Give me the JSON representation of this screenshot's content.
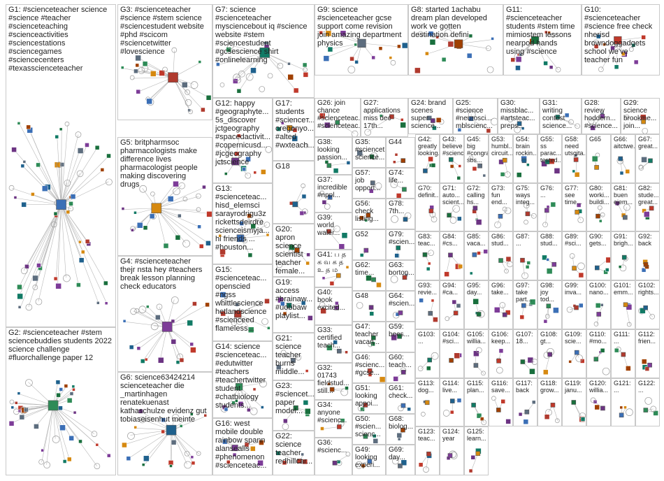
{
  "graph": {
    "colors": {
      "border": "#c9c9c9",
      "edge": "#b8b8b8",
      "label": "#222222",
      "background": "#ffffff"
    },
    "groups": [
      {
        "id": "G1",
        "label": "G1: #scienceteacher science\n#science #teacher\n#scienceteaching\n#scienceactivities\n#sciencestations\n#sciencegames\n#sciencecenters\n#texasscienceteacher"
      },
      {
        "id": "G2",
        "label": "G2: #scienceteacher #stem\nsciencebuddies students 2022\nscience challenge\n#fluorchallenge paper 12"
      },
      {
        "id": "G3",
        "label": "G3: #scienceteacher\n#science #stem science\n#sciencestudent website\n#phd #scicom\n#sciencetwitter\n#lovescience"
      },
      {
        "id": "G4",
        "label": "G4: #scienceteacher\nthejr nsta hey #teachers\nbreak lesson planning\ncheck educators"
      },
      {
        "id": "G5",
        "label": "G5: britpharmsoc\npharmacologists make\ndifference lives\npharmacologist people\nmaking discovering\ndrugs"
      },
      {
        "id": "G6",
        "label": "G6: science63424214\nscienceteacher die\n_martinhagen\nrenatekuenast\nkathaschulze evidenz gut\ntobiaseisenhut meinte"
      },
      {
        "id": "G7",
        "label": "G7: science\n#scienceteacher\nmysciencebout iq #science\nwebsite #stem\n#sciencestudent\n#gcsescience shirt\n#onlinelearning"
      },
      {
        "id": "G8",
        "label": "G8: started 1achabu\ndream plan developed\nwork ve gotten\ndestination defini"
      },
      {
        "id": "G9",
        "label": "G9: science\n#scienceteacher gcse\nsupport come revision\njoin amazing department\nphysics"
      },
      {
        "id": "G10",
        "label": "G10:\n#scienceteacher\n#science free check\nnherisd\nbrowndoggadgets\nschool we've\nteacher fun"
      },
      {
        "id": "G11",
        "label": "G11:\n#scienceteacher\nstudents #stem time\nmimiostem lessons\nnearpod hands\nusing #science"
      },
      {
        "id": "G12",
        "label": "G12: happy\n#geographyte...\n5s_discover\njctgeography\n#spacedactivit...\n#copernicusd...\n#jcgeography\njctscience"
      },
      {
        "id": "G13",
        "label": "G13:\n#scienceteac...\nhisd_elemsci\nsarayrodrigu3z\nrickettsdeirdre\nscienceismyja...\nhi friends ...\n#houston..."
      },
      {
        "id": "G14",
        "label": "G14: science\n#scienceteac...\n#edutwitter\n#teachers\n#teachertwitter\nstudent\n#chatbiology\nstudents..."
      },
      {
        "id": "G15",
        "label": "G15:\n#scienceteac...\nopenscied\n#ngss\nwhittlescience\nhetlandscience\n#scienceed\nflameless..."
      },
      {
        "id": "G16",
        "label": "G16: west\nmobile double\nrainbow spann\nalansealls\n#phenomenon\n#scienceteac..."
      },
      {
        "id": "G17",
        "label": "G17:\nstudents\n#scienceт...\noregonyo...\n#alted\n#wxteach..."
      },
      {
        "id": "G18",
        "label": "G18"
      },
      {
        "id": "G19",
        "label": "G19:\naccess\n#brainaw...\n#uobbaw\nplaylist..."
      },
      {
        "id": "G20",
        "label": "G20: apron\nscience\nscientist\nteacher\nfemale..."
      },
      {
        "id": "G21",
        "label": "G21:\nscience\nteacher\nburns\nmiddle..."
      },
      {
        "id": "G22",
        "label": "G22:\nscience\nteacher\nredhillcar..."
      },
      {
        "id": "G23",
        "label": "G23:\n#sciencet...\npaper\nmodel..."
      },
      {
        "id": "G24",
        "label": "G24: brand\nscenes\nsuper\nscience..."
      },
      {
        "id": "G25",
        "label": "G25:\n#science\n#neurosci...\nmblscienc..."
      },
      {
        "id": "G26",
        "label": "G26: join\nchance\n#scienceteac...\n#scienceteac..."
      },
      {
        "id": "G27",
        "label": "G27:\napplications\nmiss dec\n17th..."
      },
      {
        "id": "G28",
        "label": "G28:\nreview\nhoddern...\n#science..."
      },
      {
        "id": "G29",
        "label": "G29:\nscience\nbrookme...\njoin..."
      },
      {
        "id": "G30",
        "label": "G30:\nmissblac...\n#artsteac...\npreps..."
      },
      {
        "id": "G31",
        "label": "G31:\nwriting\ncontest\nscience..."
      },
      {
        "id": "G32",
        "label": "G32:\n01743\nfieldstud...\nstill..."
      },
      {
        "id": "G33",
        "label": "G33:\ncertified\nteach..."
      },
      {
        "id": "G34",
        "label": "G34:\nanyone\n#scienc..."
      },
      {
        "id": "G35",
        "label": "G35:\n#sciencet...\nscience..."
      },
      {
        "id": "G36",
        "label": "G36:\n#scienc..."
      },
      {
        "id": "G37",
        "label": "G37:\nincredible\n#nppl..."
      },
      {
        "id": "G38",
        "label": "G38:\nlooking\npassion..."
      },
      {
        "id": "G39",
        "label": "G39:\nworld\nwater..."
      },
      {
        "id": "G40",
        "label": "G40:\nbook\nexcited..."
      },
      {
        "id": "G41",
        "label": "G41: ப த\nக வ க த\nஉ த ம"
      },
      {
        "id": "G42",
        "label": "G42:\ngreatly\nlooking..."
      },
      {
        "id": "G43",
        "label": "G43:\nbelieve\n#scienc..."
      },
      {
        "id": "G44",
        "label": "G44"
      },
      {
        "id": "G45",
        "label": "G45: big\n#congra...\nsbs..."
      },
      {
        "id": "G46",
        "label": "G46:\n#scienc...\n#gcse..."
      },
      {
        "id": "G47",
        "label": "G47:\nteacher\nvacan..."
      },
      {
        "id": "G48",
        "label": "G48"
      },
      {
        "id": "G49",
        "label": "G49:\nlooking\nexperi..."
      },
      {
        "id": "G50",
        "label": "G50:\n#scien...\nscienc..."
      },
      {
        "id": "G51",
        "label": "G51:\nlooking\nappoi..."
      },
      {
        "id": "G52",
        "label": "G52"
      },
      {
        "id": "G53",
        "label": "G53:\nhumbl...\ncircuit..."
      },
      {
        "id": "G54",
        "label": "G54:\nbrain\nrockin..."
      },
      {
        "id": "G55",
        "label": "G55: ss\nparac...\ntested..."
      },
      {
        "id": "G56",
        "label": "G56:\ncheck\nlisting..."
      },
      {
        "id": "G57",
        "label": "G57:\njob\nopport..."
      },
      {
        "id": "G58",
        "label": "G58:\nneed\nutsgita..."
      },
      {
        "id": "G59",
        "label": "G59:\nbees..."
      },
      {
        "id": "G60",
        "label": "G60:\nteach..."
      },
      {
        "id": "G61",
        "label": "G61:\ncheck..."
      },
      {
        "id": "G62",
        "label": "G62:\ntime..."
      },
      {
        "id": "G63",
        "label": "G63:\nborton..."
      },
      {
        "id": "G64",
        "label": "G64:\n#scien..."
      },
      {
        "id": "G65",
        "label": "G65"
      },
      {
        "id": "G66",
        "label": "G66:\naitctwe..."
      },
      {
        "id": "G67",
        "label": "G67:\ngreat..."
      },
      {
        "id": "G68",
        "label": "G68:\nbiolog..."
      },
      {
        "id": "G69",
        "label": "G69:\nday..."
      },
      {
        "id": "G70",
        "label": "G70:\ndefinit..."
      },
      {
        "id": "G71",
        "label": "G71:\nauto...\nscient..."
      },
      {
        "id": "G72",
        "label": "G72:\ncalling\nhs..."
      },
      {
        "id": "G73",
        "label": "G73:\nfun\nend..."
      },
      {
        "id": "G74",
        "label": "G74:\nlife..."
      },
      {
        "id": "G75",
        "label": "G75:\nways\ninteg..."
      },
      {
        "id": "G76",
        "label": "G76:\n..."
      },
      {
        "id": "G77",
        "label": "G77:\nsee\ntime..."
      },
      {
        "id": "G78",
        "label": "G78:\n7th..."
      },
      {
        "id": "G79",
        "label": "G79:\n#scien..."
      },
      {
        "id": "G80",
        "label": "G80:\nworki...\nbuildi..."
      },
      {
        "id": "G81",
        "label": "G81:\nbuen\nejem..."
      },
      {
        "id": "G82",
        "label": "G82:\nstude...\ngreat..."
      },
      {
        "id": "G83",
        "label": "G83:\nteac..."
      },
      {
        "id": "G84",
        "label": "G84:\n#cs..."
      },
      {
        "id": "G85",
        "label": "G85:\nvaca..."
      },
      {
        "id": "G86",
        "label": "G86:\nstud..."
      },
      {
        "id": "G87",
        "label": "G87:\n..."
      },
      {
        "id": "G88",
        "label": "G88:\nstud..."
      },
      {
        "id": "G89",
        "label": "G89:\n#sci..."
      },
      {
        "id": "G90",
        "label": "G90:\ngets..."
      },
      {
        "id": "G91",
        "label": "G91:\nbrigh..."
      },
      {
        "id": "G92",
        "label": "G92:\nback"
      },
      {
        "id": "G93",
        "label": "G93:\nrevie..."
      },
      {
        "id": "G94",
        "label": "G94:\n#ca..."
      },
      {
        "id": "G95",
        "label": "G95:\nday..."
      },
      {
        "id": "G96",
        "label": "G96:\ntake..."
      },
      {
        "id": "G97",
        "label": "G97:\ntake\npart..."
      },
      {
        "id": "G98",
        "label": "G98:\njoy\ntod..."
      },
      {
        "id": "G99",
        "label": "G99:\ninva..."
      },
      {
        "id": "G100",
        "label": "G100:\nnano..."
      },
      {
        "id": "G101",
        "label": "G101:\nemm..."
      },
      {
        "id": "G102",
        "label": "G102:\nrights..."
      },
      {
        "id": "G103",
        "label": "G103:\n..."
      },
      {
        "id": "G104",
        "label": "G104:\n#sci..."
      },
      {
        "id": "G105",
        "label": "G105:\nwillia..."
      },
      {
        "id": "G106",
        "label": "G106:\nkeep..."
      },
      {
        "id": "G107",
        "label": "G107:\n18..."
      },
      {
        "id": "G108",
        "label": "G108:\ngt..."
      },
      {
        "id": "G109",
        "label": "G109:\nscie..."
      },
      {
        "id": "G110",
        "label": "G110:\n#mo..."
      },
      {
        "id": "G111",
        "label": "G111:\n..."
      },
      {
        "id": "G112",
        "label": "G112:\nfrien..."
      },
      {
        "id": "G113",
        "label": "G113:\ndog..."
      },
      {
        "id": "G114",
        "label": "G114:\nlive..."
      },
      {
        "id": "G115",
        "label": "G115:\nplan..."
      },
      {
        "id": "G116",
        "label": "G116:\nsave..."
      },
      {
        "id": "G117",
        "label": "G117:\nback"
      },
      {
        "id": "G118",
        "label": "G118:\ngrow..."
      },
      {
        "id": "G119",
        "label": "G119:\njanu..."
      },
      {
        "id": "G120",
        "label": "G120:\nwillia..."
      },
      {
        "id": "G121",
        "label": "G121:\n..."
      },
      {
        "id": "G122",
        "label": "G122:\n..."
      },
      {
        "id": "G123",
        "label": "G123:\nteac..."
      },
      {
        "id": "G124",
        "label": "G124:\nyear"
      },
      {
        "id": "G125",
        "label": "G125:\nlearn..."
      }
    ]
  }
}
